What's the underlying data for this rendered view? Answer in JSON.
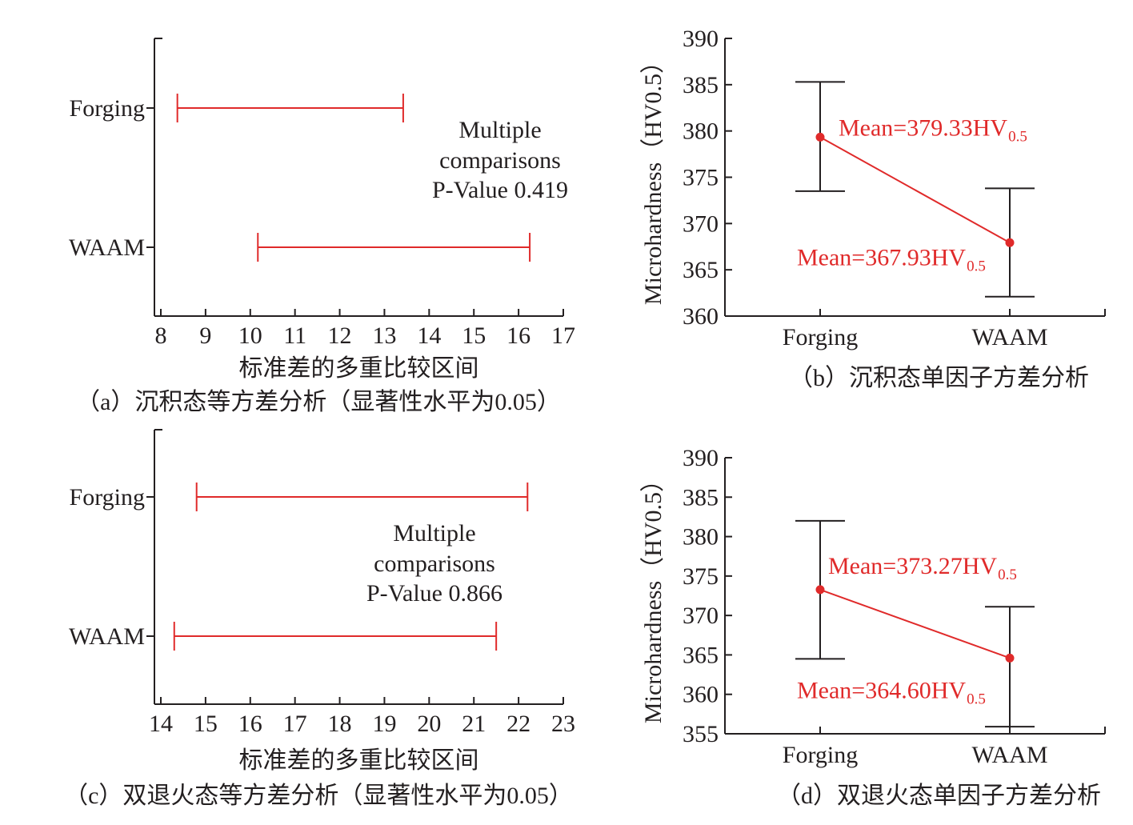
{
  "chart_data": [
    {
      "id": "a",
      "type": "interval",
      "xlabel": "标准差的多重比较区间",
      "caption": "（a）沉积态等方差分析（显著性水平为0.05）",
      "xlim": [
        8,
        17
      ],
      "xticks": [
        "8",
        "9",
        "10",
        "11",
        "12",
        "13",
        "14",
        "15",
        "16",
        "17"
      ],
      "categories": [
        "Forging",
        "WAAM"
      ],
      "intervals": [
        [
          8.37,
          13.42
        ],
        [
          10.17,
          16.25
        ]
      ],
      "annotation": [
        "Multiple",
        "comparisons",
        "P-Value 0.419"
      ]
    },
    {
      "id": "b",
      "type": "line",
      "ylabel": "Microhardness（HV0.5）",
      "caption": "（b）沉积态单因子方差分析",
      "ylim": [
        360,
        390
      ],
      "yticks": [
        "360",
        "365",
        "370",
        "375",
        "380",
        "385",
        "390"
      ],
      "categories": [
        "Forging",
        "WAAM"
      ],
      "means": [
        379.33,
        367.93
      ],
      "errors": [
        [
          373.5,
          385.3
        ],
        [
          362.1,
          373.8
        ]
      ],
      "labels": [
        "Mean=379.33HV",
        "Mean=367.93HV"
      ],
      "label_sub": "0.5"
    },
    {
      "id": "c",
      "type": "interval",
      "xlabel": "标准差的多重比较区间",
      "caption": "（c）双退火态等方差分析（显著性水平为0.05）",
      "xlim": [
        14,
        23
      ],
      "xticks": [
        "14",
        "15",
        "16",
        "17",
        "18",
        "19",
        "20",
        "21",
        "22",
        "23"
      ],
      "categories": [
        "Forging",
        "WAAM"
      ],
      "intervals": [
        [
          14.8,
          22.2
        ],
        [
          14.3,
          21.5
        ]
      ],
      "annotation": [
        "Multiple",
        "comparisons",
        "P-Value 0.866"
      ]
    },
    {
      "id": "d",
      "type": "line",
      "ylabel": "Microhardness（HV0.5）",
      "caption": "（d）双退火态单因子方差分析",
      "ylim": [
        355,
        390
      ],
      "yticks": [
        "355",
        "360",
        "365",
        "370",
        "375",
        "380",
        "385",
        "390"
      ],
      "categories": [
        "Forging",
        "WAAM"
      ],
      "means": [
        373.27,
        364.6
      ],
      "errors": [
        [
          364.5,
          382.0
        ],
        [
          355.9,
          371.1
        ]
      ],
      "labels": [
        "Mean=373.27HV",
        "Mean=364.60HV"
      ],
      "label_sub": "0.5"
    }
  ]
}
